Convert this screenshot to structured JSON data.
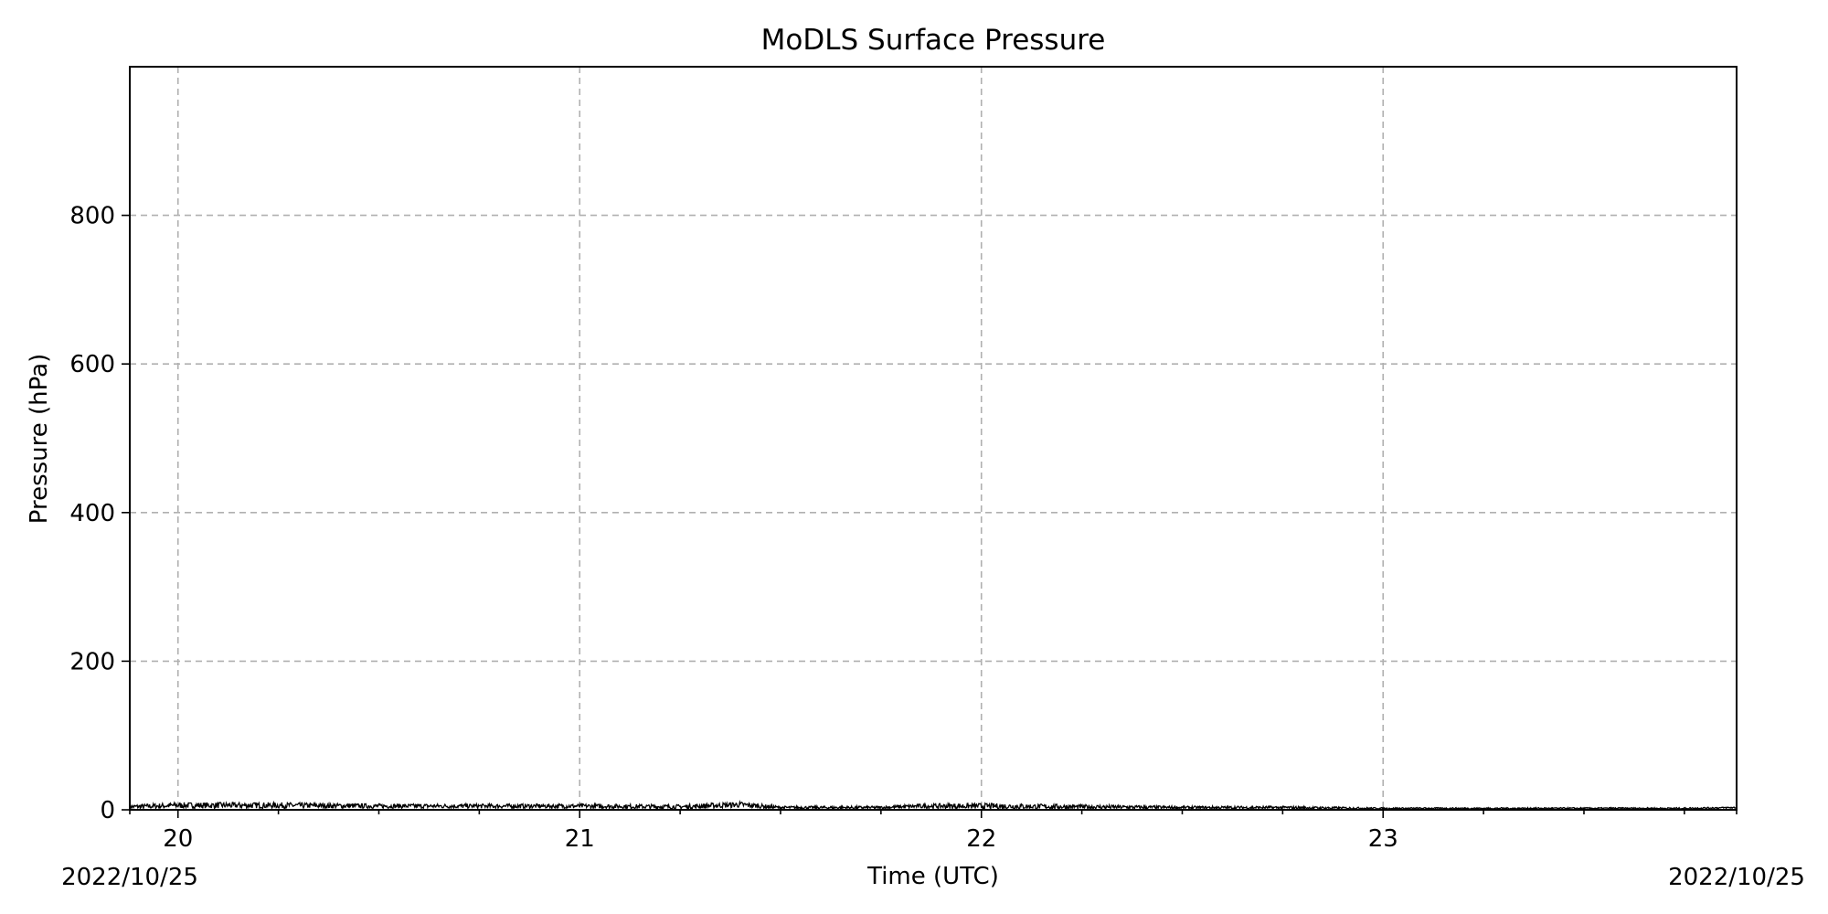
{
  "chart_data": {
    "type": "line",
    "title": "MoDLS Surface Pressure",
    "xlabel": "Time (UTC)",
    "ylabel": "Pressure (hPa)",
    "x_unit": "hour UTC",
    "xlim": [
      19.88,
      23.88
    ],
    "ylim": [
      0,
      1000
    ],
    "x_ticks": [
      20,
      21,
      22,
      23
    ],
    "x_tick_labels": [
      "20",
      "21",
      "22",
      "23"
    ],
    "x_minor_ticks": [
      20.25,
      20.5,
      20.75,
      21.25,
      21.5,
      21.75,
      22.25,
      22.5,
      22.75,
      23.25,
      23.5,
      23.75
    ],
    "y_ticks": [
      0,
      200,
      400,
      600,
      800
    ],
    "y_tick_labels": [
      "0",
      "200",
      "400",
      "600",
      "800"
    ],
    "date_label_start": "2022/10/25",
    "date_label_end": "2022/10/25",
    "grid": true,
    "line_color": "#000000",
    "series": [
      {
        "x": [
          19.88,
          20.0,
          20.25,
          20.5,
          20.75,
          21.0,
          21.25,
          21.4,
          21.5,
          21.75,
          21.85,
          22.0,
          22.25,
          22.5,
          22.75,
          23.0,
          23.25,
          23.5,
          23.75,
          23.88
        ],
        "y": [
          4,
          6,
          6,
          5,
          5,
          5,
          4,
          7,
          3,
          3,
          5,
          5,
          4,
          3,
          3,
          2,
          2,
          2,
          2,
          3
        ],
        "band": [
          3,
          4,
          4,
          3,
          3,
          3,
          3,
          4,
          2,
          2,
          3,
          4,
          3,
          2,
          2,
          1,
          1,
          1,
          1,
          1
        ]
      }
    ]
  }
}
